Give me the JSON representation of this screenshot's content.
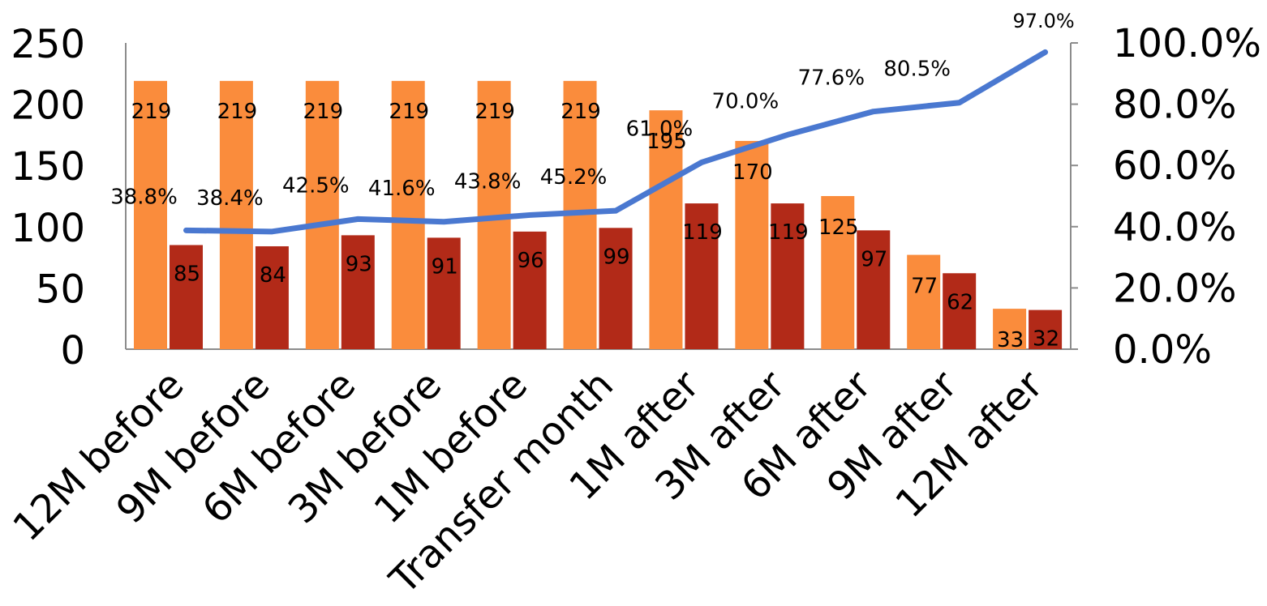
{
  "chart_data": {
    "type": "bar",
    "categories": [
      "12M before",
      "9M before",
      "6M before",
      "3M before",
      "1M before",
      "Transfer month",
      "1M after",
      "3M after",
      "6M after",
      "9M after",
      "12M after"
    ],
    "series": [
      {
        "kind": "bar",
        "color": "#FA8C3C",
        "values": [
          219,
          219,
          219,
          219,
          219,
          219,
          195,
          170,
          125,
          77,
          33
        ],
        "labels": [
          "219",
          "219",
          "219",
          "219",
          "219",
          "219",
          "195",
          "170",
          "125",
          "77",
          "33"
        ]
      },
      {
        "kind": "bar",
        "color": "#B22A18",
        "values": [
          85,
          84,
          93,
          91,
          96,
          99,
          119,
          119,
          97,
          62,
          32
        ],
        "labels": [
          "85",
          "84",
          "93",
          "91",
          "96",
          "99",
          "119",
          "119",
          "97",
          "62",
          "32"
        ]
      },
      {
        "kind": "line",
        "axis": "right",
        "color": "#4A78D0",
        "values": [
          38.8,
          38.4,
          42.5,
          41.6,
          43.8,
          45.2,
          61.0,
          70.0,
          77.6,
          80.5,
          97.0
        ],
        "labels": [
          "38.8%",
          "38.4%",
          "42.5%",
          "41.6%",
          "43.8%",
          "45.2%",
          "61.0%",
          "70.0%",
          "77.6%",
          "80.5%",
          "97.0%"
        ]
      }
    ],
    "y_left": {
      "ylim": [
        0,
        250
      ],
      "ticks": [
        "0",
        "50",
        "100",
        "150",
        "200",
        "250"
      ]
    },
    "y_right": {
      "ylim": [
        0,
        100
      ],
      "ticks": [
        "0.0%",
        "20.0%",
        "40.0%",
        "60.0%",
        "80.0%",
        "100.0%"
      ]
    },
    "axis_color": "#8C8C8C",
    "title": "",
    "xlabel": "",
    "ylabel": "",
    "grid": false,
    "legend": "none"
  }
}
